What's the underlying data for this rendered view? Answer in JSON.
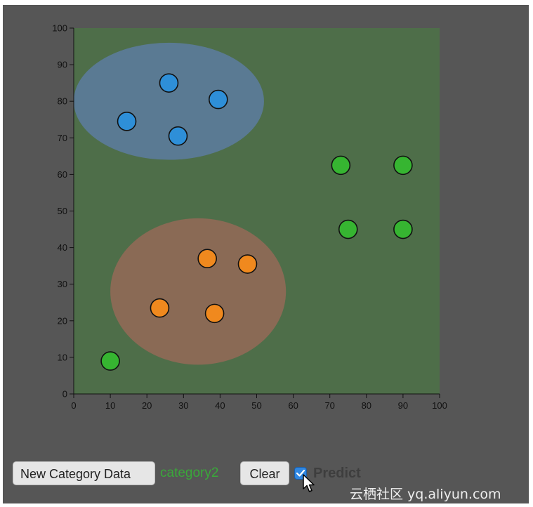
{
  "chart_data": {
    "type": "scatter",
    "xlim": [
      0,
      100
    ],
    "ylim": [
      0,
      100
    ],
    "x_ticks": [
      0,
      10,
      20,
      30,
      40,
      50,
      60,
      70,
      80,
      90,
      100
    ],
    "y_ticks": [
      0,
      10,
      20,
      30,
      40,
      50,
      60,
      70,
      80,
      90,
      100
    ],
    "grid": false,
    "background_region": {
      "color": "#4e6e49"
    },
    "regions": [
      {
        "category": "blue",
        "color": "#5a7a93",
        "center": [
          26,
          80
        ],
        "rx": 26,
        "ry": 16
      },
      {
        "category": "orange",
        "color": "#8a6a55",
        "center": [
          34,
          28
        ],
        "rx": 24,
        "ry": 20
      }
    ],
    "series": [
      {
        "color": "#2e8fd8",
        "points": [
          [
            14.5,
            74.5
          ],
          [
            26,
            85
          ],
          [
            28.5,
            70.5
          ],
          [
            39.5,
            80.5
          ]
        ]
      },
      {
        "color": "#f0891e",
        "points": [
          [
            23.5,
            23.5
          ],
          [
            36.5,
            37
          ],
          [
            38.5,
            22
          ],
          [
            47.5,
            35.5
          ]
        ]
      },
      {
        "color": "#36b531",
        "points": [
          [
            10,
            9
          ],
          [
            73,
            62.5
          ],
          [
            90,
            62.5
          ],
          [
            75,
            45
          ],
          [
            90,
            45
          ]
        ]
      }
    ]
  },
  "controls": {
    "new_category_label": "New Category Data",
    "current_category": "category2",
    "clear_label": "Clear",
    "predict_label": "Predict",
    "predict_checked": true
  },
  "watermark": {
    "text": "云栖社区 yq.aliyun.com"
  }
}
